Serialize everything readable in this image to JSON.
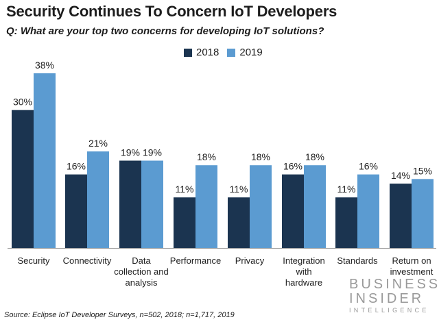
{
  "title": "Security Continues To Concern IoT Developers",
  "subtitle": "Q: What are your top two concerns for developing IoT solutions?",
  "source": "Source: Eclipse IoT Developer Surveys, n=502, 2018; n=1,717, 2019",
  "logo": {
    "line1": "BUSINESS",
    "line2": "INSIDER",
    "line3": "INTELLIGENCE"
  },
  "colors": {
    "s2018": "#1b3450",
    "s2019": "#5b9bd1",
    "axis": "#999999",
    "text": "#1d1d1d"
  },
  "chart_data": {
    "type": "bar",
    "title": "Security Continues To Concern IoT Developers",
    "subtitle": "Q: What are your top two concerns for developing IoT solutions?",
    "categories": [
      [
        "Security"
      ],
      [
        "Connectivity"
      ],
      [
        "Data",
        "collection and",
        "analysis"
      ],
      [
        "Performance"
      ],
      [
        "Privacy"
      ],
      [
        "Integration",
        "with",
        "hardware"
      ],
      [
        "Standards"
      ],
      [
        "Return on",
        "investment"
      ]
    ],
    "series": [
      {
        "name": "2018",
        "values": [
          30,
          16,
          19,
          11,
          11,
          16,
          11,
          14
        ],
        "labels": [
          "30%",
          "16%",
          "19%",
          "11%",
          "11%",
          "16%",
          "11%",
          "14%"
        ]
      },
      {
        "name": "2019",
        "values": [
          38,
          21,
          19,
          18,
          18,
          18,
          16,
          15
        ],
        "labels": [
          "38%",
          "21%",
          "19%",
          "18%",
          "18%",
          "18%",
          "16%",
          "15%"
        ]
      }
    ],
    "ylim": [
      0,
      38
    ],
    "legend": "top-center",
    "grid": false
  }
}
